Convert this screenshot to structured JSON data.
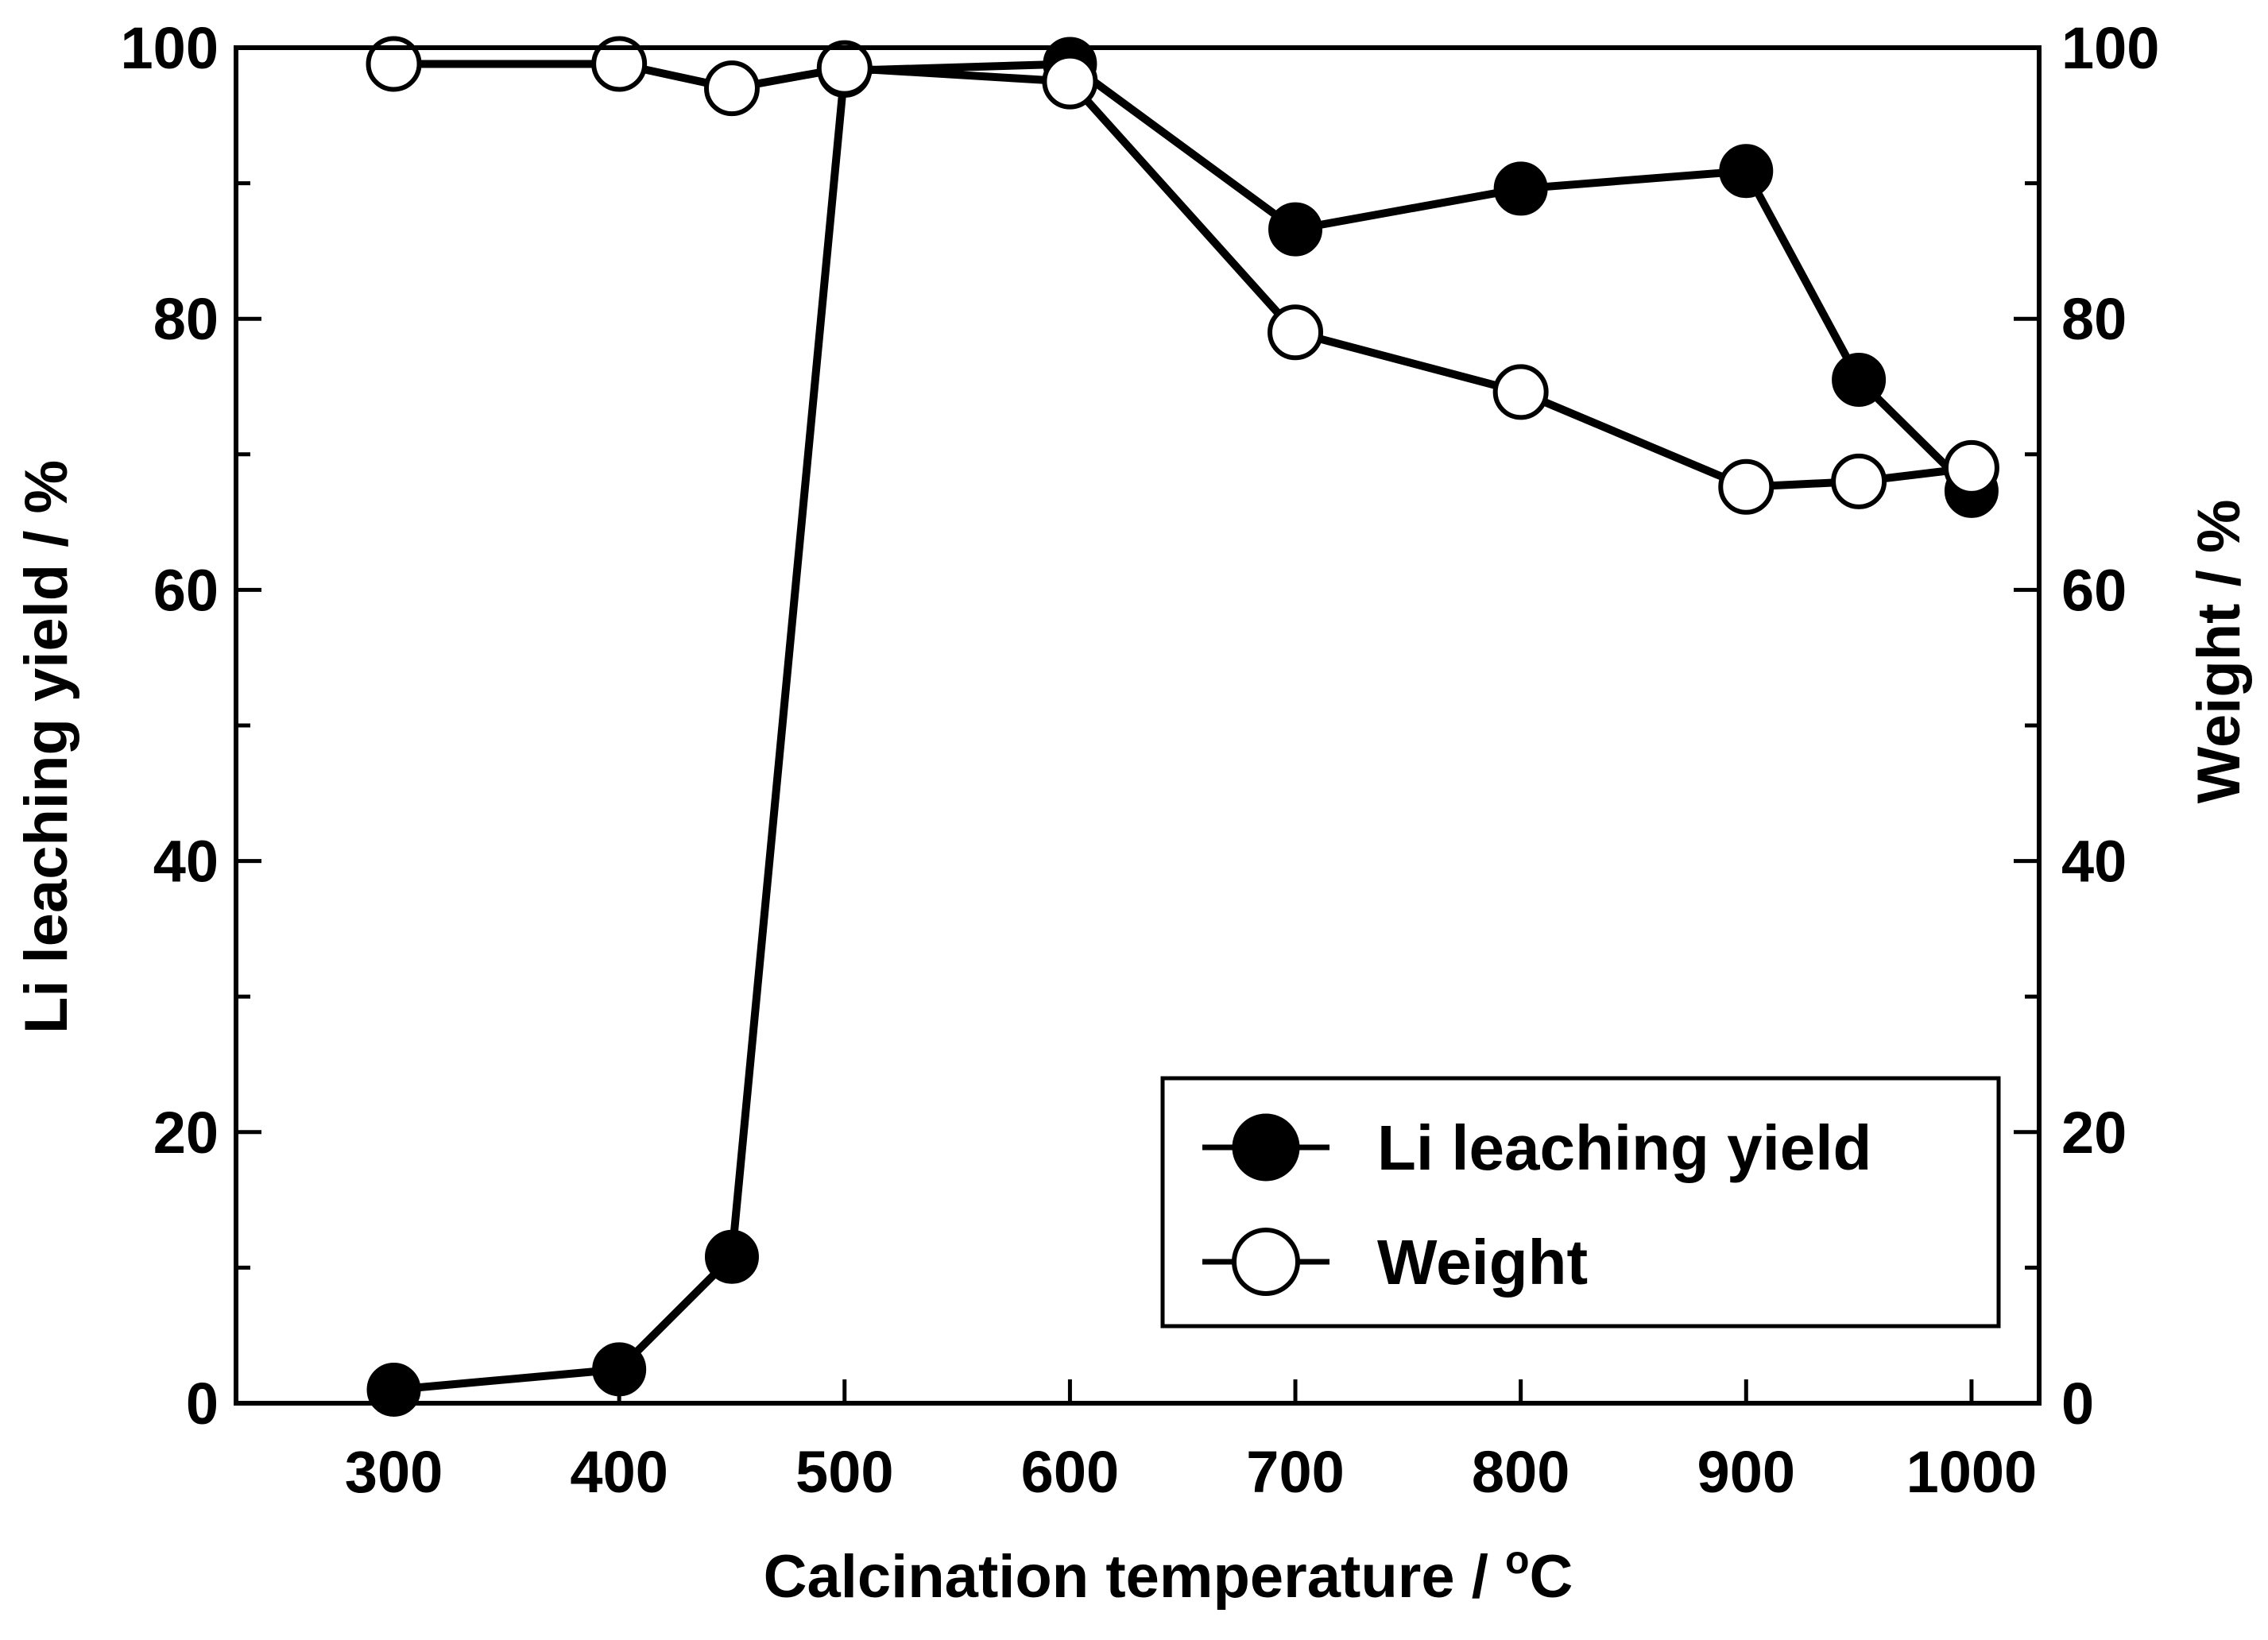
{
  "chart_data": {
    "type": "line",
    "title": "",
    "xlabel": "Calcination temperature / ",
    "xlabel_unit_sup": "o",
    "xlabel_unit": "C",
    "ylabel": "Li leaching yield / %",
    "y2label": "Weight / %",
    "xlim": [
      230,
      1030
    ],
    "ylim": [
      0,
      100
    ],
    "y2lim": [
      0,
      100
    ],
    "x_ticks": [
      300,
      400,
      500,
      600,
      700,
      800,
      900,
      1000
    ],
    "y_ticks": [
      0,
      20,
      40,
      60,
      80,
      100
    ],
    "y2_ticks": [
      0,
      20,
      40,
      60,
      80,
      100
    ],
    "series": [
      {
        "name": "Li leaching yield",
        "marker": "filled-circle",
        "x": [
          300,
          400,
          450,
          500,
          600,
          700,
          800,
          900,
          950,
          1000
        ],
        "values": [
          1.0,
          2.5,
          10.8,
          98.3,
          98.8,
          86.6,
          89.6,
          90.9,
          75.5,
          67.3
        ]
      },
      {
        "name": "Weight",
        "marker": "open-circle",
        "x": [
          300,
          400,
          450,
          500,
          600,
          700,
          800,
          900,
          950,
          1000
        ],
        "values": [
          98.8,
          98.8,
          97.0,
          98.5,
          97.5,
          79.0,
          74.6,
          67.6,
          68.0,
          69.0
        ]
      }
    ],
    "legend_position": "bottom-right"
  }
}
